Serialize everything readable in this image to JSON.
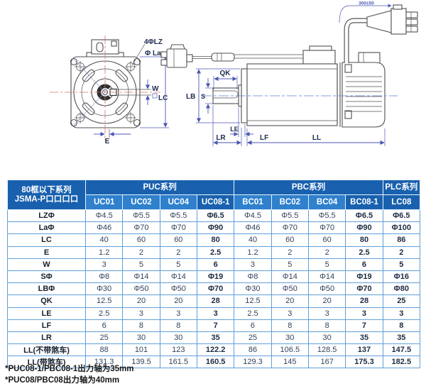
{
  "diagram": {
    "front": {
      "bolt_holes_label": "4ΦLZ",
      "pilot_diameter_label": "Φ La",
      "keyway_width_label": "W",
      "flange_size_label": "LC",
      "key_offset_label": "E"
    },
    "side": {
      "key_length_label": "QK",
      "pilot_label": "LB",
      "shaft_diameter_label": "S",
      "le_label": "LE",
      "shaft_length_label": "LR",
      "flange_thickness_label": "LF",
      "body_length_label": "LL",
      "cable_length_label": "300±50"
    }
  },
  "table": {
    "header": {
      "title_line1": "80框以下系列",
      "title_line2": "JSMA-P口口口口",
      "groups": [
        {
          "label": "PUC系列",
          "span": 4
        },
        {
          "label": "PBC系列",
          "span": 4
        },
        {
          "label": "PLC系列",
          "span": 1
        }
      ],
      "columns": [
        {
          "label": "UC01",
          "highlight": false
        },
        {
          "label": "UC02",
          "highlight": false
        },
        {
          "label": "UC04",
          "highlight": false
        },
        {
          "label": "UC08-1",
          "highlight": true
        },
        {
          "label": "BC01",
          "highlight": false
        },
        {
          "label": "BC02",
          "highlight": false
        },
        {
          "label": "BC04",
          "highlight": false
        },
        {
          "label": "BC08-1",
          "highlight": true
        },
        {
          "label": "LC08",
          "highlight": true
        }
      ]
    },
    "rows": [
      {
        "label": "LZΦ",
        "values": [
          "Φ4.5",
          "Φ5.5",
          "Φ5.5",
          "Φ6.5",
          "Φ4.5",
          "Φ5.5",
          "Φ5.5",
          "Φ6.5",
          "Φ6.5"
        ]
      },
      {
        "label": "LaΦ",
        "values": [
          "Φ46",
          "Φ70",
          "Φ70",
          "Φ90",
          "Φ46",
          "Φ70",
          "Φ70",
          "Φ90",
          "Φ100"
        ]
      },
      {
        "label": "LC",
        "values": [
          "40",
          "60",
          "60",
          "80",
          "40",
          "60",
          "60",
          "80",
          "86"
        ]
      },
      {
        "label": "E",
        "values": [
          "1.2",
          "2",
          "2",
          "2.5",
          "1.2",
          "2",
          "2",
          "2.5",
          "2"
        ]
      },
      {
        "label": "W",
        "values": [
          "3",
          "5",
          "5",
          "6",
          "3",
          "5",
          "5",
          "6",
          "5"
        ]
      },
      {
        "label": "SΦ",
        "values": [
          "Φ8",
          "Φ14",
          "Φ14",
          "Φ19",
          "Φ8",
          "Φ14",
          "Φ14",
          "Φ19",
          "Φ16"
        ]
      },
      {
        "label": "LBΦ",
        "values": [
          "Φ30",
          "Φ50",
          "Φ50",
          "Φ70",
          "Φ30",
          "Φ50",
          "Φ50",
          "Φ70",
          "Φ80"
        ]
      },
      {
        "label": "QK",
        "values": [
          "12.5",
          "20",
          "20",
          "28",
          "12.5",
          "20",
          "20",
          "28",
          "25"
        ]
      },
      {
        "label": "LE",
        "values": [
          "2.5",
          "3",
          "3",
          "3",
          "2.5",
          "3",
          "3",
          "3",
          "3"
        ]
      },
      {
        "label": "LF",
        "values": [
          "6",
          "8",
          "8",
          "7",
          "6",
          "8",
          "8",
          "7",
          "8"
        ]
      },
      {
        "label": "LR",
        "values": [
          "25",
          "30",
          "30",
          "35",
          "25",
          "30",
          "30",
          "35",
          "35"
        ]
      },
      {
        "label": "LL(不带煞车)",
        "values": [
          "88",
          "101",
          "123",
          "122.2",
          "86",
          "106.5",
          "128.5",
          "137",
          "147.5"
        ]
      },
      {
        "label": "LL(带煞车)",
        "values": [
          "131.3",
          "139.5",
          "161.5",
          "160.5",
          "129.3",
          "145",
          "167",
          "175.3",
          "182.5"
        ]
      }
    ]
  },
  "notes": [
    "*PUC08-1/PBC08-1出力轴为35mm",
    "*PUC08/PBC08出力轴为40mm"
  ],
  "colors": {
    "header_dark_blue": "#1961ae",
    "header_light_blue": "#2f80cd",
    "table_border_blue": "#5f9fd9",
    "dimension_blue": "#4a55b5",
    "centerline_red": "#cf7272",
    "body_text": "#33435c"
  }
}
